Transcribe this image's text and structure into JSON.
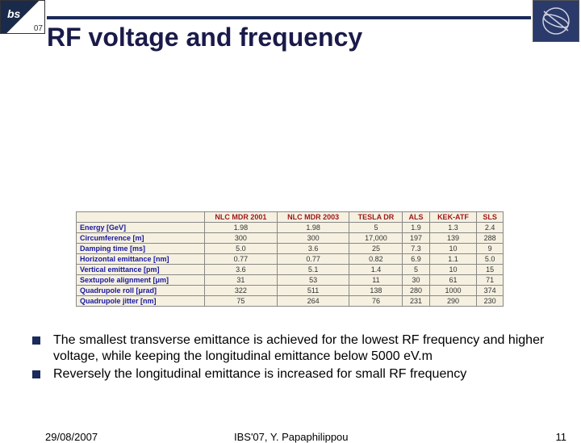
{
  "title": "RF voltage and frequency",
  "table": {
    "columns": [
      "",
      "NLC MDR 2001",
      "NLC MDR 2003",
      "TESLA DR",
      "ALS",
      "KEK-ATF",
      "SLS"
    ],
    "rows": [
      [
        "Energy [GeV]",
        "1.98",
        "1.98",
        "5",
        "1.9",
        "1.3",
        "2.4"
      ],
      [
        "Circumference [m]",
        "300",
        "300",
        "17,000",
        "197",
        "139",
        "288"
      ],
      [
        "Damping time [ms]",
        "5.0",
        "3.6",
        "25",
        "7.3",
        "10",
        "9"
      ],
      [
        "Horizontal emittance [nm]",
        "0.77",
        "0.77",
        "0.82",
        "6.9",
        "1.1",
        "5.0"
      ],
      [
        "Vertical emittance [pm]",
        "3.6",
        "5.1",
        "1.4",
        "5",
        "10",
        "15"
      ],
      [
        "Sextupole alignment [μm]",
        "31",
        "53",
        "11",
        "30",
        "61",
        "71"
      ],
      [
        "Quadrupole roll [μrad]",
        "322",
        "511",
        "138",
        "280",
        "1000",
        "374"
      ],
      [
        "Quadrupole jitter [nm]",
        "75",
        "264",
        "76",
        "231",
        "290",
        "230"
      ]
    ],
    "header_color": "#a01818",
    "label_color": "#1818a0",
    "bg_color": "#f5f0e0",
    "border_color": "#888888",
    "fontsize": 9
  },
  "bullets": [
    "The smallest transverse emittance is achieved for the lowest RF frequency and higher voltage, while keeping the longitudinal emittance below 5000 eV.m",
    "Reversely the longitudinal emittance is increased for small RF frequency"
  ],
  "footer": {
    "date": "29/08/2007",
    "center": "IBS'07, Y. Papaphilippou",
    "page": "11"
  },
  "colors": {
    "title": "#1a1a4a",
    "accent": "#1a2a5a",
    "bg": "#ffffff"
  }
}
